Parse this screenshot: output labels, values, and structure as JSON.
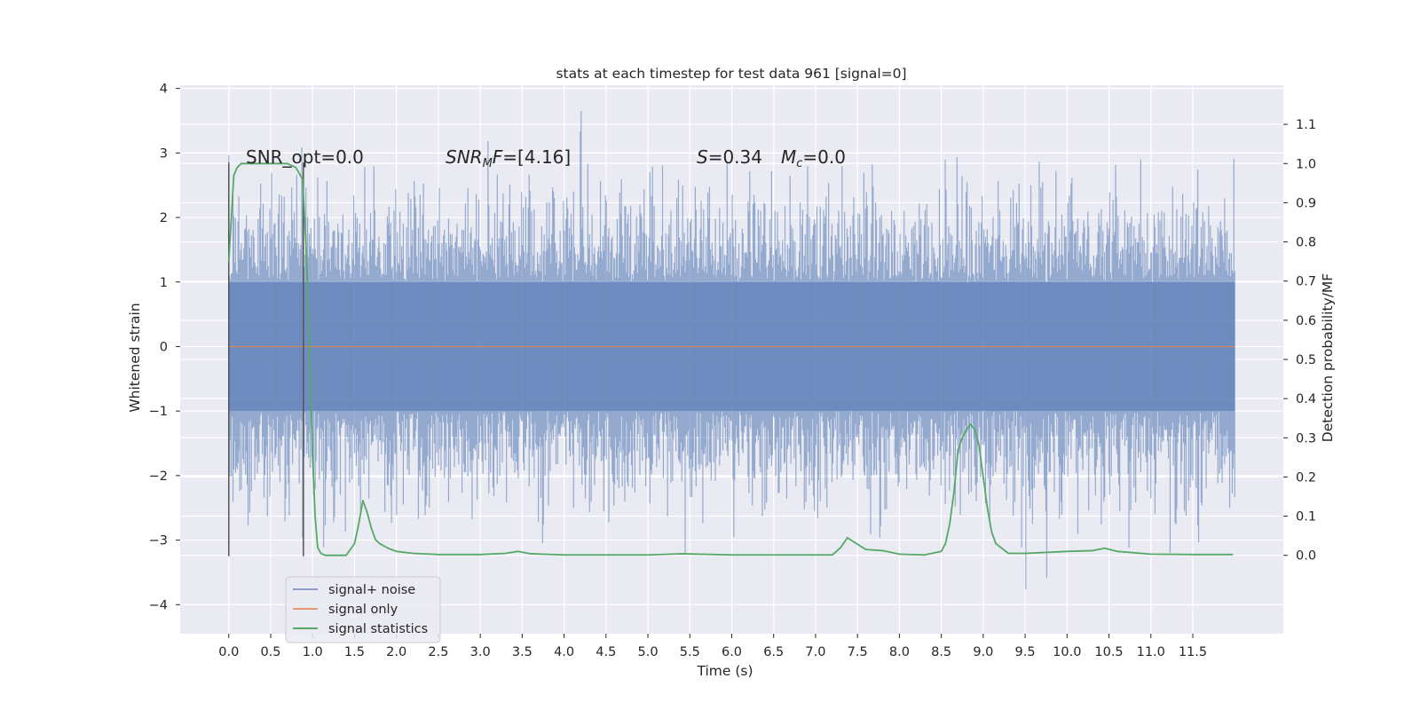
{
  "chart_data": {
    "type": "line",
    "title": "stats at each timestep for test data 961 [signal=0]",
    "xlabel": "Time (s)",
    "ylabel": "Whitened strain",
    "ylabel_right": "Detection probability/MF",
    "xlim": [
      -0.58,
      12.58
    ],
    "ylim": [
      -4.45,
      4.05
    ],
    "ylim_right": [
      -0.2,
      1.2
    ],
    "x_ticks": [
      "0.0",
      "0.5",
      "1.0",
      "1.5",
      "2.0",
      "2.5",
      "3.0",
      "3.5",
      "4.0",
      "4.5",
      "5.0",
      "5.5",
      "6.0",
      "6.5",
      "7.0",
      "7.5",
      "8.0",
      "8.5",
      "9.0",
      "9.5",
      "10.0",
      "10.5",
      "11.0",
      "11.5"
    ],
    "y_ticks": [
      "4",
      "3",
      "2",
      "1",
      "0",
      "−1",
      "−2",
      "−3",
      "−4"
    ],
    "y_ticks_right": [
      "1.1",
      "1.0",
      "0.9",
      "0.8",
      "0.7",
      "0.6",
      "0.5",
      "0.4",
      "0.3",
      "0.2",
      "0.1",
      "0.0"
    ],
    "grid": true,
    "legend_position": "lower-left",
    "colors": {
      "noise": "#4c72b0",
      "signal": "#dd8452",
      "stat": "#55a868",
      "background": "#eaeaf2",
      "grid": "#ffffff",
      "marker": "#555555"
    },
    "annotations": {
      "snr_opt": "SNR_opt=0.0",
      "snr_mf_math": "SNR",
      "snr_mf_sub": "M",
      "snr_mf_math2": "F",
      "snr_mf_rest": "=[4.16]",
      "s_math": "S",
      "s_rest": "=0.34",
      "mc_math": "M",
      "mc_sub": "c",
      "mc_rest": "=0.0"
    },
    "markers": [
      0.0,
      0.89
    ],
    "series": [
      {
        "name": "signal+ noise",
        "kind": "noise",
        "x_range": [
          0,
          12
        ],
        "sample_count": 1200,
        "band_sigma": 1.0,
        "extremes_y": [
          -4.1,
          3.66
        ]
      },
      {
        "name": "signal only",
        "x": [
          0,
          12
        ],
        "y": [
          0,
          0
        ]
      },
      {
        "name": "signal statistics",
        "axis": "right",
        "x": [
          0.0,
          0.06,
          0.1,
          0.15,
          0.25,
          0.4,
          0.6,
          0.7,
          0.8,
          0.88,
          0.92,
          0.96,
          1.0,
          1.03,
          1.06,
          1.1,
          1.15,
          1.25,
          1.4,
          1.5,
          1.55,
          1.6,
          1.65,
          1.7,
          1.75,
          1.8,
          1.9,
          2.0,
          2.2,
          2.5,
          3.0,
          3.3,
          3.45,
          3.6,
          4.0,
          5.0,
          5.4,
          6.0,
          7.0,
          7.2,
          7.3,
          7.38,
          7.45,
          7.6,
          7.8,
          8.0,
          8.3,
          8.5,
          8.55,
          8.6,
          8.65,
          8.7,
          8.75,
          8.8,
          8.85,
          8.9,
          8.95,
          9.0,
          9.05,
          9.1,
          9.15,
          9.3,
          9.5,
          10.0,
          10.3,
          10.45,
          10.6,
          11.0,
          11.5,
          11.98
        ],
        "y": [
          0.75,
          0.97,
          0.99,
          1.0,
          1.0,
          1.0,
          1.0,
          1.0,
          0.99,
          0.96,
          0.8,
          0.55,
          0.25,
          0.1,
          0.02,
          0.005,
          0.0,
          0.0,
          0.0,
          0.03,
          0.08,
          0.14,
          0.11,
          0.07,
          0.04,
          0.03,
          0.018,
          0.01,
          0.005,
          0.002,
          0.002,
          0.005,
          0.01,
          0.004,
          0.001,
          0.001,
          0.004,
          0.001,
          0.001,
          0.001,
          0.02,
          0.045,
          0.035,
          0.015,
          0.012,
          0.003,
          0.001,
          0.01,
          0.03,
          0.08,
          0.16,
          0.27,
          0.3,
          0.32,
          0.335,
          0.32,
          0.28,
          0.2,
          0.12,
          0.06,
          0.03,
          0.005,
          0.005,
          0.01,
          0.012,
          0.018,
          0.01,
          0.003,
          0.002,
          0.002
        ]
      }
    ]
  }
}
